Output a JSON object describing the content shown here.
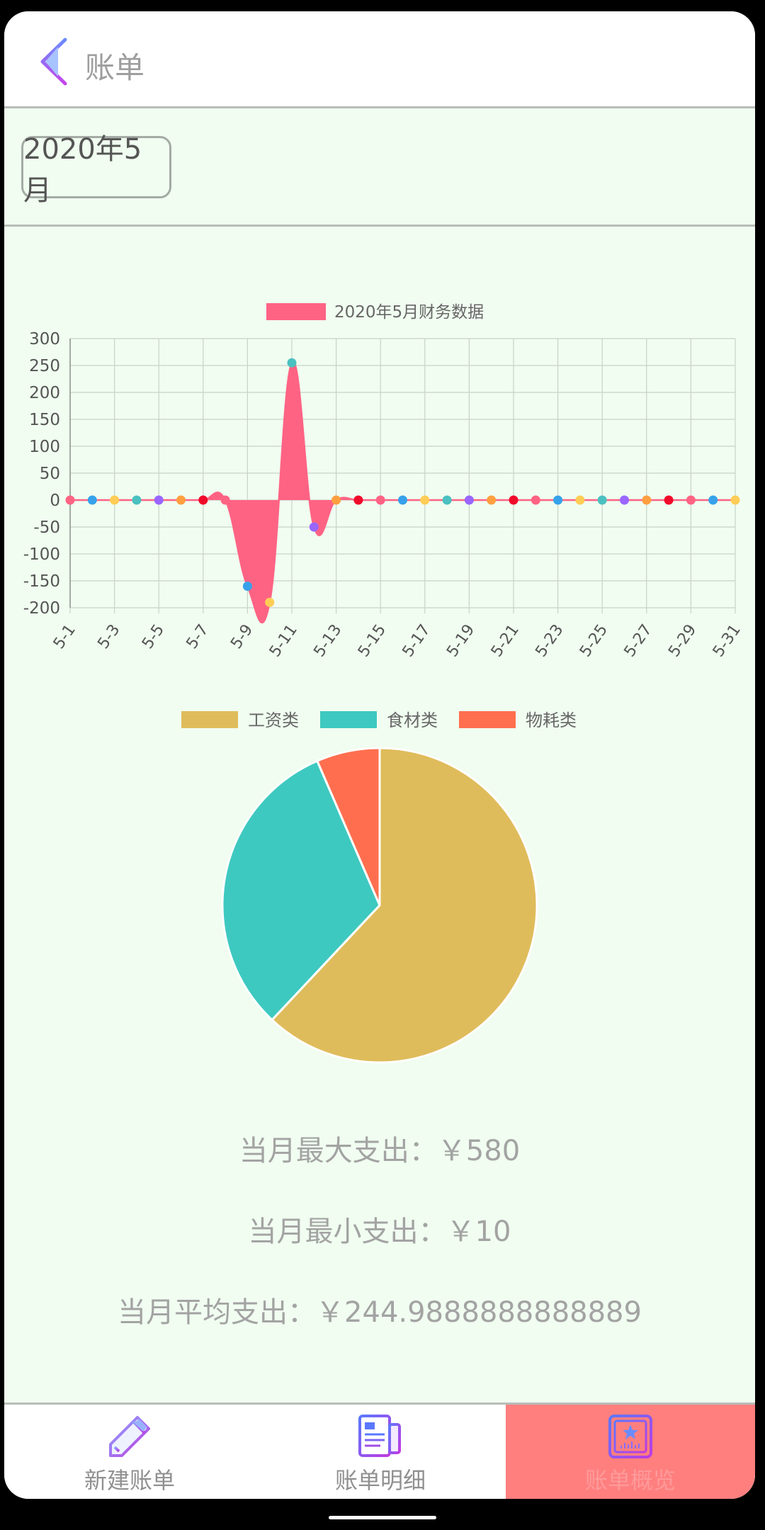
{
  "header": {
    "title": "账单",
    "back_icon": "chevron-left-icon"
  },
  "month_picker": {
    "label": "2020年5月"
  },
  "chart_data": [
    {
      "type": "area",
      "legend": [
        "2020年5月财务数据"
      ],
      "legend_placement": "top-center",
      "grid": true,
      "ylim": [
        -200,
        300
      ],
      "y_ticks": [
        300,
        250,
        200,
        150,
        100,
        50,
        0,
        -50,
        -100,
        -150,
        -200
      ],
      "x_tick_labels": [
        "5-1",
        "5-3",
        "5-5",
        "5-7",
        "5-9",
        "5-11",
        "5-13",
        "5-15",
        "5-17",
        "5-19",
        "5-21",
        "5-23",
        "5-25",
        "5-27",
        "5-29",
        "5-31"
      ],
      "series": [
        {
          "name": "2020年5月财务数据",
          "color": "#ff6384",
          "x": [
            "5-1",
            "5-2",
            "5-3",
            "5-4",
            "5-5",
            "5-6",
            "5-7",
            "5-8",
            "5-9",
            "5-10",
            "5-11",
            "5-12",
            "5-13",
            "5-14",
            "5-15",
            "5-16",
            "5-17",
            "5-18",
            "5-19",
            "5-20",
            "5-21",
            "5-22",
            "5-23",
            "5-24",
            "5-25",
            "5-26",
            "5-27",
            "5-28",
            "5-29",
            "5-30",
            "5-31"
          ],
          "values": [
            0,
            0,
            0,
            0,
            0,
            0,
            0,
            0,
            -160,
            -190,
            255,
            -50,
            0,
            0,
            0,
            0,
            0,
            0,
            0,
            0,
            0,
            0,
            0,
            0,
            0,
            0,
            0,
            0,
            0,
            0,
            0
          ]
        }
      ],
      "point_colors": [
        "#ff6384",
        "#36a2eb",
        "#ffcd56",
        "#4bc0c0",
        "#9966ff",
        "#ff9f40",
        "#f00a2a"
      ]
    },
    {
      "type": "pie",
      "legend_placement": "top-center",
      "categories": [
        "工资类",
        "食材类",
        "物耗类"
      ],
      "values": [
        62,
        31.5,
        6.5
      ],
      "colors": [
        "#dfbc5b",
        "#3ec9c0",
        "#ff6f4f"
      ]
    }
  ],
  "stats": {
    "max": "当月最大支出：￥580",
    "min": "当月最小支出：￥10",
    "avg": "当月平均支出：￥244.9888888888889"
  },
  "tabs": [
    {
      "label": "新建账单",
      "icon": "pencil-icon"
    },
    {
      "label": "账单明细",
      "icon": "document-list-icon"
    },
    {
      "label": "账单概览",
      "icon": "chart-overview-icon",
      "active": true
    }
  ]
}
